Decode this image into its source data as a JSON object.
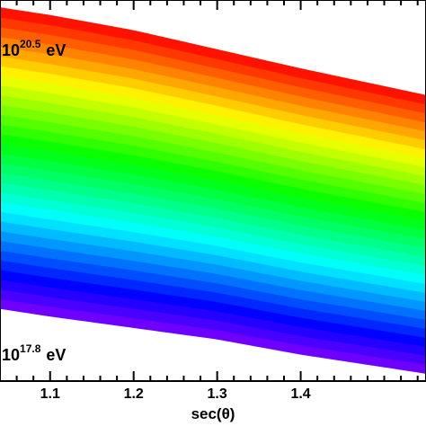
{
  "chart_data": {
    "type": "area",
    "xlabel": "sec(θ)",
    "ylabel": "",
    "xlim": [
      1.04,
      1.55
    ],
    "xticks": [
      1.1,
      1.2,
      1.3,
      1.4
    ],
    "x_minor_tick_step": 0.02,
    "grid": false,
    "bands_per_sample": 31,
    "top_energy_label": {
      "base": "10",
      "exponent": "20.5",
      "unit": "eV"
    },
    "bottom_energy_label": {
      "base": "10",
      "exponent": "17.8",
      "unit": "eV"
    },
    "energy_range_log10eV": [
      17.8,
      20.5
    ],
    "color_scale": "rainbow: violet/blue at 10^17.8 eV to red at 10^20.5 eV",
    "colors": [
      "#8000ff",
      "#0000ff",
      "#0080ff",
      "#00ffff",
      "#00ff80",
      "#00ff00",
      "#80ff00",
      "#ffff00",
      "#ff8000",
      "#ff0000"
    ],
    "upper_boundary": [
      {
        "x": 1.04,
        "y": 0.98
      },
      {
        "x": 1.1,
        "y": 0.96
      },
      {
        "x": 1.2,
        "y": 0.92
      },
      {
        "x": 1.3,
        "y": 0.87
      },
      {
        "x": 1.4,
        "y": 0.82
      },
      {
        "x": 1.55,
        "y": 0.75
      }
    ],
    "lower_boundary": [
      {
        "x": 1.04,
        "y": 0.19
      },
      {
        "x": 1.1,
        "y": 0.17
      },
      {
        "x": 1.2,
        "y": 0.14
      },
      {
        "x": 1.3,
        "y": 0.11
      },
      {
        "x": 1.4,
        "y": 0.07
      },
      {
        "x": 1.55,
        "y": 0.02
      }
    ]
  }
}
